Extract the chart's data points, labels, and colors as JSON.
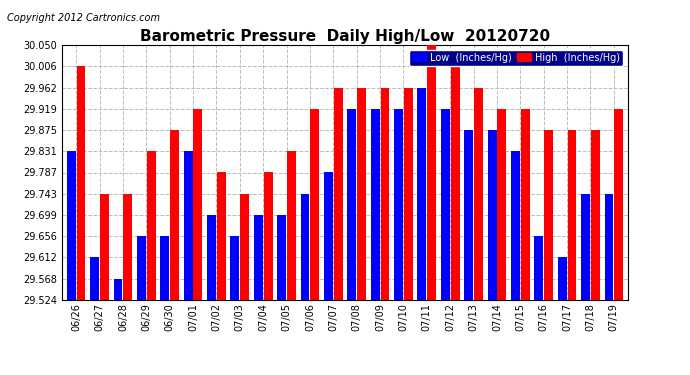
{
  "title": "Barometric Pressure  Daily High/Low  20120720",
  "copyright": "Copyright 2012 Cartronics.com",
  "legend_low": "Low  (Inches/Hg)",
  "legend_high": "High  (Inches/Hg)",
  "dates": [
    "06/26",
    "06/27",
    "06/28",
    "06/29",
    "06/30",
    "07/01",
    "07/02",
    "07/03",
    "07/04",
    "07/05",
    "07/06",
    "07/07",
    "07/08",
    "07/09",
    "07/10",
    "07/11",
    "07/12",
    "07/13",
    "07/14",
    "07/15",
    "07/16",
    "07/17",
    "07/18",
    "07/19"
  ],
  "low_values": [
    29.831,
    29.612,
    29.568,
    29.656,
    29.656,
    29.831,
    29.699,
    29.656,
    29.699,
    29.699,
    29.743,
    29.787,
    29.919,
    29.919,
    29.919,
    29.962,
    29.919,
    29.875,
    29.875,
    29.831,
    29.656,
    29.612,
    29.743,
    29.743
  ],
  "high_values": [
    30.006,
    29.743,
    29.743,
    29.831,
    29.875,
    29.919,
    29.787,
    29.743,
    29.787,
    29.831,
    29.919,
    29.962,
    29.962,
    29.962,
    29.962,
    30.05,
    30.006,
    29.962,
    29.919,
    29.919,
    29.875,
    29.875,
    29.875,
    29.919
  ],
  "ylim_min": 29.524,
  "ylim_max": 30.05,
  "yticks": [
    29.524,
    29.568,
    29.612,
    29.656,
    29.699,
    29.743,
    29.787,
    29.831,
    29.875,
    29.919,
    29.962,
    30.006,
    30.05
  ],
  "low_color": "#0000ff",
  "high_color": "#ff0000",
  "bg_color": "#ffffff",
  "grid_color": "#bbbbbb",
  "title_fontsize": 11,
  "tick_fontsize": 7,
  "copyright_fontsize": 7,
  "bar_width": 0.38,
  "bar_gap": 0.04
}
